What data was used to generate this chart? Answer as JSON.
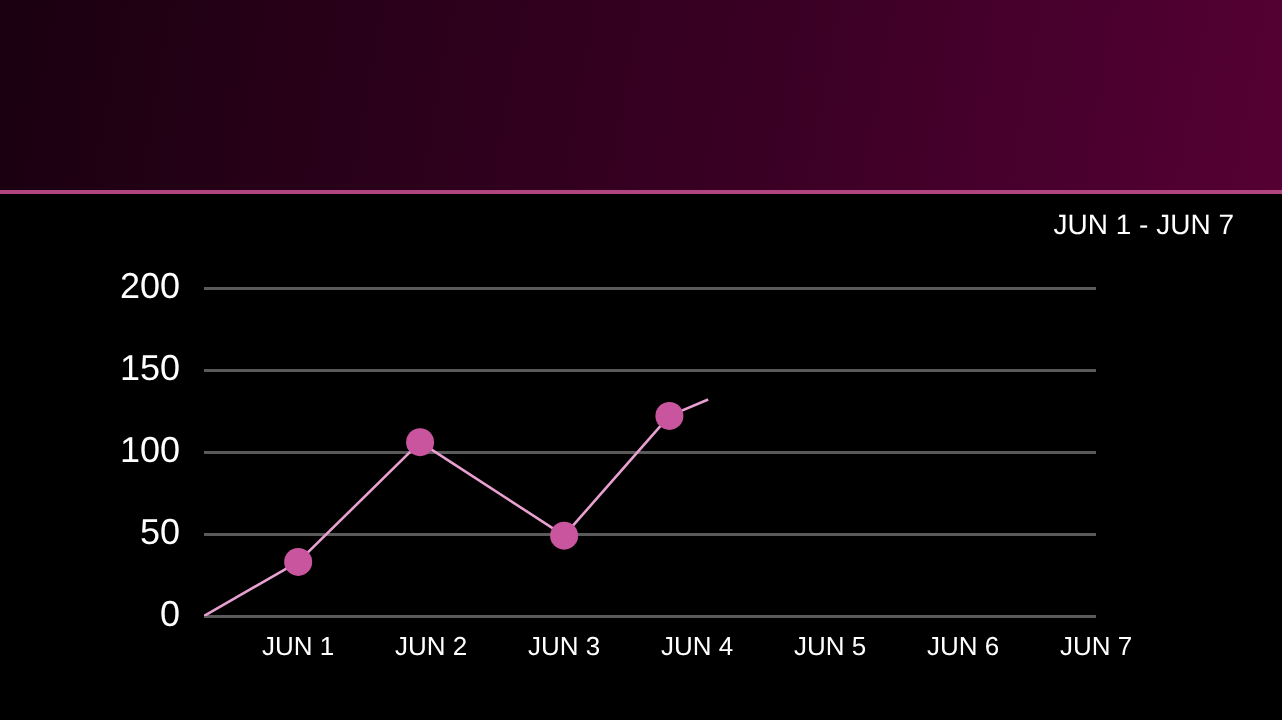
{
  "chart_data": {
    "type": "line",
    "subtitle": "JUN 1 - JUN 7",
    "xlim": [
      "--05-31T07:00",
      "--06-07"
    ],
    "xticks": [
      {
        "value": "--06-01",
        "label": "JUN 1"
      },
      {
        "value": "--06-02",
        "label": "JUN 2"
      },
      {
        "value": "--06-03",
        "label": "JUN 3"
      },
      {
        "value": "--06-04",
        "label": "JUN 4"
      },
      {
        "value": "--06-05",
        "label": "JUN 5"
      },
      {
        "value": "--06-06",
        "label": "JUN 6"
      },
      {
        "value": "--06-07",
        "label": "JUN 7"
      }
    ],
    "ylim": [
      0,
      200
    ],
    "yticks": [
      0,
      50,
      100,
      150,
      200
    ],
    "grid": "y",
    "marker": "circle",
    "series": [
      {
        "type": "line",
        "color": "#e8a0d0",
        "marker": "none",
        "x": [
          "--05-31T07:00",
          "--06-01",
          "--06-01T22:00",
          "--06-03",
          "--06-03T19:00",
          "--06-04T02:00"
        ],
        "values": [
          0,
          33,
          106,
          49,
          122,
          132
        ]
      },
      {
        "type": "scatter",
        "color": "#c9559f",
        "x": [
          "--06-01",
          "--06-01T22:00",
          "--06-03",
          "--06-03T19:00"
        ],
        "values": [
          33,
          106,
          49,
          122
        ]
      }
    ]
  }
}
